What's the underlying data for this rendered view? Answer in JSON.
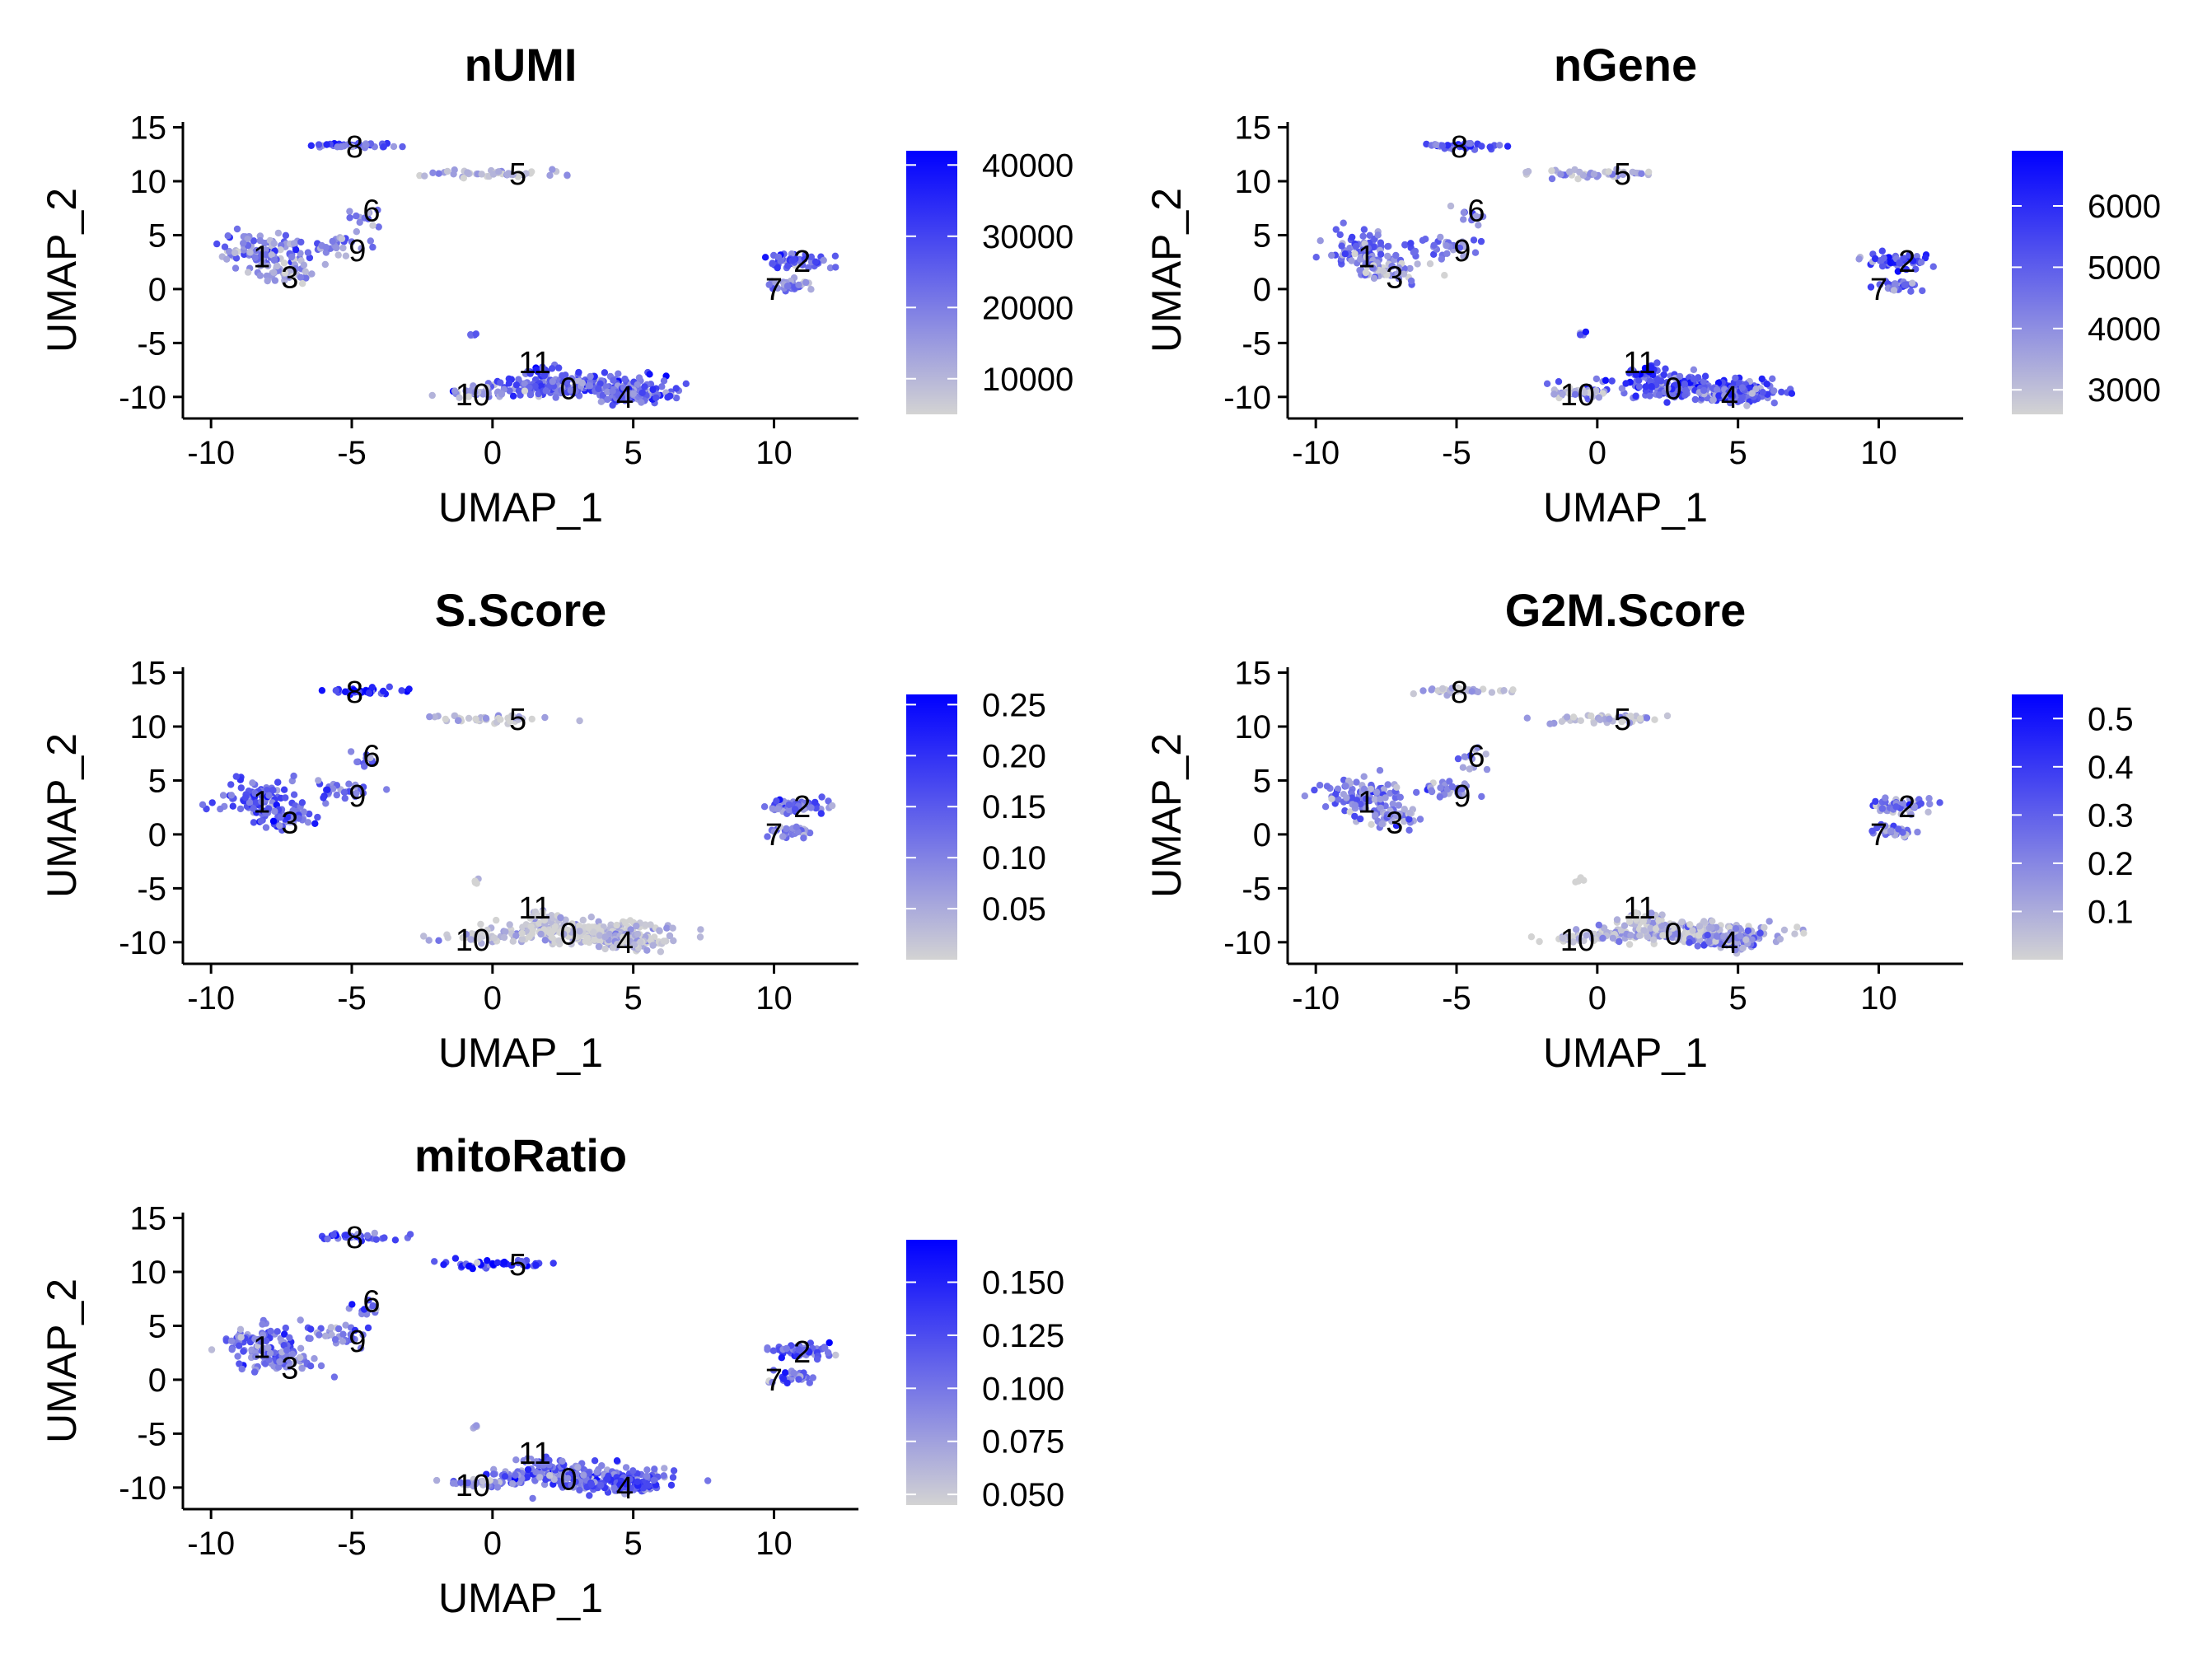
{
  "chart_data": [
    {
      "type": "scatter",
      "title": "nUMI",
      "xlabel": "UMAP_1",
      "ylabel": "UMAP_2",
      "xlim": [
        -11,
        13
      ],
      "ylim": [
        -12,
        15.5
      ],
      "xticks": [
        "-10",
        "-5",
        "0",
        "5",
        "10"
      ],
      "xtick_values": [
        -10,
        -5,
        0,
        5,
        10
      ],
      "yticks": [
        "15",
        "10",
        "5",
        "0",
        "-5",
        "-10"
      ],
      "ytick_values": [
        15,
        10,
        5,
        0,
        -5,
        -10
      ],
      "legend": {
        "placement": "right",
        "low_color": "#d3d3d3",
        "high_color": "#0000ff",
        "min": 5000,
        "max": 42000,
        "labels": [
          "40000",
          "30000",
          "20000",
          "10000"
        ],
        "values": [
          40000,
          30000,
          20000,
          10000
        ]
      },
      "cluster_high": {
        "0": 0.5,
        "1": 0.4,
        "2": 0.55,
        "3": 0.2,
        "4": 0.5,
        "5": 0.1,
        "6": 0.35,
        "7": 0.35,
        "8": 0.5,
        "9": 0.35,
        "10": 0.15,
        "11": 0.7,
        "tail": 0.5
      }
    },
    {
      "type": "scatter",
      "title": "nGene",
      "xlabel": "UMAP_1",
      "ylabel": "UMAP_2",
      "xlim": [
        -11,
        13
      ],
      "ylim": [
        -12,
        15.5
      ],
      "xticks": [
        "-10",
        "-5",
        "0",
        "5",
        "10"
      ],
      "xtick_values": [
        -10,
        -5,
        0,
        5,
        10
      ],
      "yticks": [
        "15",
        "10",
        "5",
        "0",
        "-5",
        "-10"
      ],
      "ytick_values": [
        15,
        10,
        5,
        0,
        -5,
        -10
      ],
      "legend": {
        "placement": "right",
        "low_color": "#d3d3d3",
        "high_color": "#0000ff",
        "min": 2600,
        "max": 6900,
        "labels": [
          "6000",
          "5000",
          "4000",
          "3000"
        ],
        "values": [
          6000,
          5000,
          4000,
          3000
        ]
      },
      "cluster_high": {
        "0": 0.6,
        "1": 0.45,
        "2": 0.6,
        "3": 0.25,
        "4": 0.5,
        "5": 0.15,
        "6": 0.4,
        "7": 0.45,
        "8": 0.6,
        "9": 0.4,
        "10": 0.2,
        "11": 0.75,
        "tail": 0.55
      }
    },
    {
      "type": "scatter",
      "title": "S.Score",
      "xlabel": "UMAP_1",
      "ylabel": "UMAP_2",
      "xlim": [
        -11,
        13
      ],
      "ylim": [
        -12,
        15.5
      ],
      "xticks": [
        "-10",
        "-5",
        "0",
        "5",
        "10"
      ],
      "xtick_values": [
        -10,
        -5,
        0,
        5,
        10
      ],
      "yticks": [
        "15",
        "10",
        "5",
        "0",
        "-5",
        "-10"
      ],
      "ytick_values": [
        15,
        10,
        5,
        0,
        -5,
        -10
      ],
      "legend": {
        "placement": "right",
        "low_color": "#d3d3d3",
        "high_color": "#0000ff",
        "min": 0.0,
        "max": 0.26,
        "labels": [
          "0.25",
          "0.20",
          "0.15",
          "0.10",
          "0.05"
        ],
        "values": [
          0.25,
          0.2,
          0.15,
          0.1,
          0.05
        ]
      },
      "cluster_high": {
        "0": 0.05,
        "1": 0.55,
        "2": 0.5,
        "3": 0.5,
        "4": 0.08,
        "5": 0.05,
        "6": 0.45,
        "7": 0.4,
        "8": 0.75,
        "9": 0.45,
        "10": 0.05,
        "11": 0.1,
        "tail": 0.0
      }
    },
    {
      "type": "scatter",
      "title": "G2M.Score",
      "xlabel": "UMAP_1",
      "ylabel": "UMAP_2",
      "xlim": [
        -11,
        13
      ],
      "ylim": [
        -12,
        15.5
      ],
      "xticks": [
        "-10",
        "-5",
        "0",
        "5",
        "10"
      ],
      "xtick_values": [
        -10,
        -5,
        0,
        5,
        10
      ],
      "yticks": [
        "15",
        "10",
        "5",
        "0",
        "-5",
        "-10"
      ],
      "ytick_values": [
        15,
        10,
        5,
        0,
        -5,
        -10
      ],
      "legend": {
        "placement": "right",
        "low_color": "#d3d3d3",
        "high_color": "#0000ff",
        "min": 0.0,
        "max": 0.55,
        "labels": [
          "0.5",
          "0.4",
          "0.3",
          "0.2",
          "0.1"
        ],
        "values": [
          0.5,
          0.4,
          0.3,
          0.2,
          0.1
        ]
      },
      "cluster_high": {
        "0": 0.12,
        "1": 0.4,
        "2": 0.35,
        "3": 0.3,
        "4": 0.35,
        "5": 0.05,
        "6": 0.3,
        "7": 0.4,
        "8": 0.15,
        "9": 0.3,
        "10": 0.05,
        "11": 0.1,
        "tail": 0.0
      }
    },
    {
      "type": "scatter",
      "title": "mitoRatio",
      "xlabel": "UMAP_1",
      "ylabel": "UMAP_2",
      "xlim": [
        -11,
        13
      ],
      "ylim": [
        -12,
        15.5
      ],
      "xticks": [
        "-10",
        "-5",
        "0",
        "5",
        "10"
      ],
      "xtick_values": [
        -10,
        -5,
        0,
        5,
        10
      ],
      "yticks": [
        "15",
        "10",
        "5",
        "0",
        "-5",
        "-10"
      ],
      "ytick_values": [
        15,
        10,
        5,
        0,
        -5,
        -10
      ],
      "legend": {
        "placement": "right",
        "low_color": "#d3d3d3",
        "high_color": "#0000ff",
        "min": 0.045,
        "max": 0.17,
        "labels": [
          "0.150",
          "0.125",
          "0.100",
          "0.075",
          "0.050"
        ],
        "values": [
          0.15,
          0.125,
          0.1,
          0.075,
          0.05
        ]
      },
      "cluster_high": {
        "0": 0.45,
        "1": 0.45,
        "2": 0.55,
        "3": 0.35,
        "4": 0.6,
        "5": 0.7,
        "6": 0.45,
        "7": 0.45,
        "8": 0.55,
        "9": 0.45,
        "10": 0.35,
        "11": 0.35,
        "tail": 0.1
      }
    }
  ],
  "clusters": [
    {
      "id": "0",
      "label_x": 2.7,
      "label_y": -9.2,
      "cx": 3.0,
      "cy": -9.0,
      "sx": 1.6,
      "sy": 0.55,
      "n": 220
    },
    {
      "id": "1",
      "label_x": -8.2,
      "label_y": 3.0,
      "cx": -8.3,
      "cy": 3.6,
      "sx": 0.7,
      "sy": 0.8,
      "n": 90
    },
    {
      "id": "2",
      "label_x": 11.0,
      "label_y": 2.6,
      "cx": 10.8,
      "cy": 2.6,
      "sx": 0.55,
      "sy": 0.35,
      "n": 60
    },
    {
      "id": "3",
      "label_x": -7.2,
      "label_y": 1.1,
      "cx": -7.4,
      "cy": 1.6,
      "sx": 0.6,
      "sy": 0.5,
      "n": 50
    },
    {
      "id": "4",
      "label_x": 4.7,
      "label_y": -10.0,
      "cx": 4.8,
      "cy": -9.8,
      "sx": 0.7,
      "sy": 0.35,
      "n": 90
    },
    {
      "id": "5",
      "label_x": 0.9,
      "label_y": 10.7,
      "cx": 0.0,
      "cy": 10.7,
      "sx": 1.1,
      "sy": 0.2,
      "n": 45
    },
    {
      "id": "6",
      "label_x": -4.3,
      "label_y": 7.3,
      "cx": -4.5,
      "cy": 6.8,
      "sx": 0.25,
      "sy": 0.5,
      "n": 12
    },
    {
      "id": "7",
      "label_x": 10.0,
      "label_y": 0.0,
      "cx": 10.6,
      "cy": 0.3,
      "sx": 0.4,
      "sy": 0.3,
      "n": 35
    },
    {
      "id": "8",
      "label_x": -4.9,
      "label_y": 13.2,
      "cx": -4.8,
      "cy": 13.3,
      "sx": 0.8,
      "sy": 0.15,
      "n": 35
    },
    {
      "id": "9",
      "label_x": -4.8,
      "label_y": 3.6,
      "cx": -5.5,
      "cy": 4.1,
      "sx": 0.6,
      "sy": 0.55,
      "n": 30
    },
    {
      "id": "10",
      "label_x": -0.7,
      "label_y": -9.8,
      "cx": -0.5,
      "cy": -9.6,
      "sx": 0.7,
      "sy": 0.2,
      "n": 30
    },
    {
      "id": "11",
      "label_x": 1.5,
      "label_y": -6.8,
      "cx": 1.7,
      "cy": -7.6,
      "sx": 0.35,
      "sy": 0.3,
      "n": 20
    },
    {
      "id": "tail",
      "label_x": null,
      "label_y": null,
      "cx": -0.6,
      "cy": -4.3,
      "sx": 0.1,
      "sy": 0.15,
      "n": 4
    }
  ]
}
